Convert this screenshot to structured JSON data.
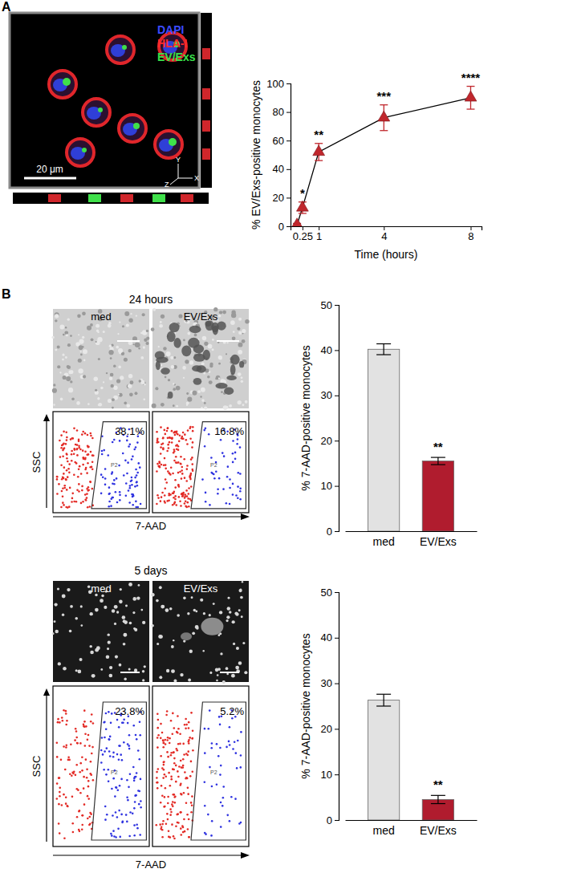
{
  "figure": {
    "panel_a": {
      "label": "A",
      "stains": [
        "DAPI",
        "HLA-I",
        "EV/Exs"
      ],
      "scale_bar": "20 μm",
      "axes": [
        "Y",
        "Z",
        "X"
      ]
    },
    "panel_b": {
      "label": "B",
      "flow_y": "SSC",
      "flow_x": "7-AAD",
      "rows": [
        {
          "title": "24 hours",
          "images": [
            "med",
            "EV/Exs"
          ],
          "flow_percent": [
            "38.1%",
            "16.8%"
          ],
          "gate": "P2"
        },
        {
          "title": "5 days",
          "images": [
            "med",
            "EV/Exs"
          ],
          "flow_percent": [
            "23.8%",
            "5.2%"
          ],
          "gate": "P2"
        }
      ]
    }
  },
  "chart_data": [
    {
      "type": "line",
      "y_label": "% EV/Exs-positive monocytes",
      "x_label": "Time (hours)",
      "x": [
        0,
        0.25,
        1,
        4,
        8
      ],
      "values": [
        1,
        13,
        52,
        76,
        90
      ],
      "errors": [
        1,
        4,
        6,
        9,
        8
      ],
      "color": "#c0272d",
      "marker": "triangle",
      "xlim": [
        -0.3,
        8.5
      ],
      "xticks": [
        0.25,
        1,
        4,
        8
      ],
      "ylim": [
        0,
        100
      ],
      "yticks": [
        0,
        20,
        40,
        60,
        80,
        100
      ],
      "annotations": [
        {
          "x": 0.25,
          "text": "*"
        },
        {
          "x": 1,
          "text": "**"
        },
        {
          "x": 4,
          "text": "***"
        },
        {
          "x": 8,
          "text": "****"
        }
      ]
    },
    {
      "type": "bar",
      "y_label": "% 7-AAD-positive monocytes",
      "categories": [
        "med",
        "EV/Exs"
      ],
      "values": [
        40.2,
        15.5
      ],
      "errors": [
        1.2,
        0.8
      ],
      "colors": [
        "#e2e2e2",
        "#b01c2e"
      ],
      "ylim": [
        0,
        50
      ],
      "yticks": [
        0,
        10,
        20,
        30,
        40,
        50
      ],
      "annotations": [
        {
          "category": "EV/Exs",
          "text": "**"
        }
      ]
    },
    {
      "type": "bar",
      "y_label": "% 7-AAD-positive monocytes",
      "categories": [
        "med",
        "EV/Exs"
      ],
      "values": [
        26.3,
        4.5
      ],
      "errors": [
        1.3,
        0.9
      ],
      "colors": [
        "#e2e2e2",
        "#b01c2e"
      ],
      "ylim": [
        0,
        50
      ],
      "yticks": [
        0,
        10,
        20,
        30,
        40,
        50
      ],
      "annotations": [
        {
          "category": "EV/Exs",
          "text": "**"
        }
      ]
    }
  ]
}
